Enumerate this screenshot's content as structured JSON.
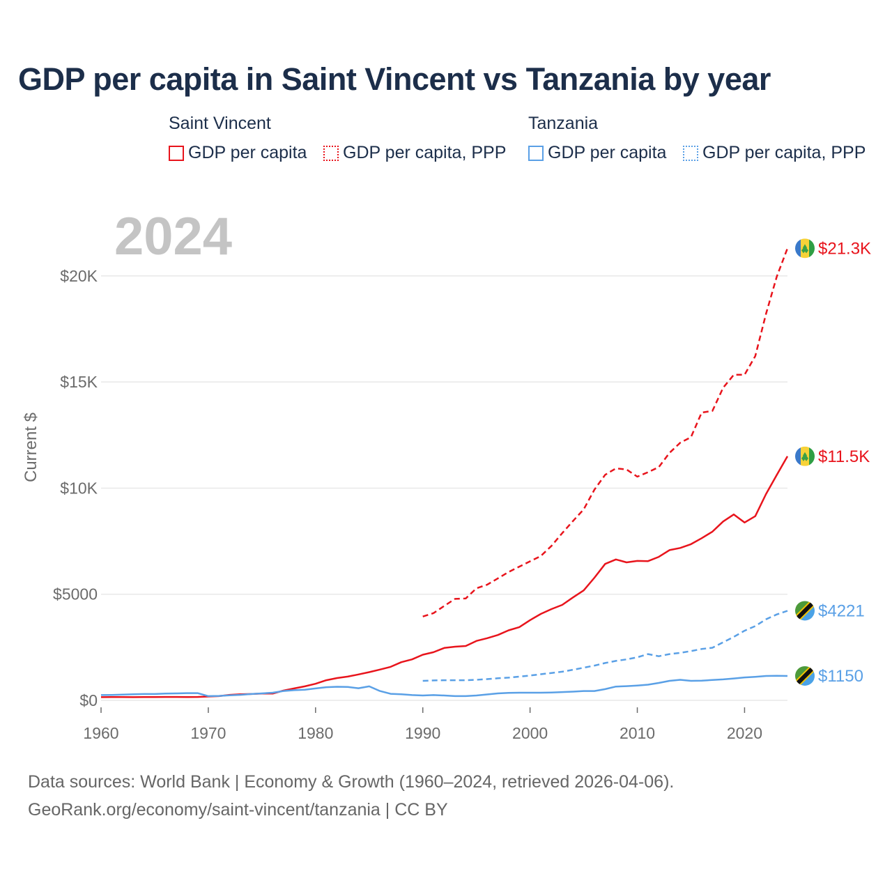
{
  "title": "GDP per capita in Saint Vincent vs Tanzania by year",
  "current_year": "2024",
  "colors": {
    "saint_vincent": "#e8141c",
    "tanzania": "#5aa0e6",
    "title": "#1c2e4a",
    "grid": "#e8e8e8"
  },
  "legend": {
    "groups": [
      {
        "name": "Saint Vincent",
        "items": [
          "GDP per capita",
          "GDP per capita, PPP"
        ]
      },
      {
        "name": "Tanzania",
        "items": [
          "GDP per capita",
          "GDP per capita, PPP"
        ]
      }
    ]
  },
  "source": {
    "line1": "Data sources: World Bank | Economy & Growth (1960–2024, retrieved 2026-04-06).",
    "line2": "GeoRank.org/economy/saint-vincent/tanzania | CC BY"
  },
  "chart_data": {
    "type": "line",
    "title": "GDP per capita in Saint Vincent vs Tanzania by year",
    "xlabel": "",
    "ylabel": "Current $",
    "xlim": [
      1960,
      2024
    ],
    "ylim": [
      0,
      22000
    ],
    "x_ticks": [
      1960,
      1970,
      1980,
      1990,
      2000,
      2010,
      2020
    ],
    "y_ticks": [
      0,
      5000,
      10000,
      15000,
      20000
    ],
    "y_tick_labels": [
      "$0",
      "$5000",
      "$10K",
      "$15K",
      "$20K"
    ],
    "grid": true,
    "series": [
      {
        "name": "Saint Vincent GDP per capita",
        "country": "saint_vincent",
        "style": "solid",
        "end_label": "$11.5K",
        "x": [
          1960,
          1961,
          1962,
          1963,
          1964,
          1965,
          1966,
          1967,
          1968,
          1969,
          1970,
          1971,
          1972,
          1973,
          1974,
          1975,
          1976,
          1977,
          1978,
          1979,
          1980,
          1981,
          1982,
          1983,
          1984,
          1985,
          1986,
          1987,
          1988,
          1989,
          1990,
          1991,
          1992,
          1993,
          1994,
          1995,
          1996,
          1997,
          1998,
          1999,
          2000,
          2001,
          2002,
          2003,
          2004,
          2005,
          2006,
          2007,
          2008,
          2009,
          2010,
          2011,
          2012,
          2013,
          2014,
          2015,
          2016,
          2017,
          2018,
          2019,
          2020,
          2021,
          2022,
          2023,
          2024
        ],
        "values": [
          150,
          155,
          155,
          150,
          155,
          158,
          160,
          160,
          155,
          160,
          180,
          200,
          260,
          290,
          300,
          320,
          320,
          460,
          560,
          660,
          780,
          950,
          1050,
          1120,
          1220,
          1330,
          1450,
          1580,
          1800,
          1930,
          2150,
          2270,
          2470,
          2530,
          2560,
          2800,
          2930,
          3080,
          3300,
          3450,
          3780,
          4070,
          4300,
          4500,
          4850,
          5180,
          5780,
          6430,
          6640,
          6500,
          6570,
          6560,
          6760,
          7080,
          7180,
          7360,
          7640,
          7950,
          8430,
          8760,
          8380,
          8680,
          9720,
          10620,
          11500
        ]
      },
      {
        "name": "Saint Vincent GDP per capita, PPP",
        "country": "saint_vincent",
        "style": "dashed",
        "end_label": "$21.3K",
        "x": [
          1990,
          1991,
          1992,
          1993,
          1994,
          1995,
          1996,
          1997,
          1998,
          1999,
          2000,
          2001,
          2002,
          2003,
          2004,
          2005,
          2006,
          2007,
          2008,
          2009,
          2010,
          2011,
          2012,
          2013,
          2014,
          2015,
          2016,
          2017,
          2018,
          2019,
          2020,
          2021,
          2022,
          2023,
          2024
        ],
        "values": [
          3950,
          4110,
          4450,
          4780,
          4800,
          5280,
          5450,
          5750,
          6050,
          6300,
          6550,
          6800,
          7280,
          7880,
          8450,
          9000,
          9930,
          10630,
          10930,
          10880,
          10540,
          10750,
          10990,
          11660,
          12140,
          12400,
          13560,
          13640,
          14730,
          15340,
          15340,
          16220,
          18210,
          19960,
          21300
        ]
      },
      {
        "name": "Tanzania GDP per capita",
        "country": "tanzania",
        "style": "solid",
        "end_label": "$1150",
        "x": [
          1960,
          1961,
          1962,
          1963,
          1964,
          1965,
          1966,
          1967,
          1968,
          1969,
          1970,
          1971,
          1972,
          1973,
          1974,
          1975,
          1976,
          1977,
          1978,
          1979,
          1980,
          1981,
          1982,
          1983,
          1984,
          1985,
          1986,
          1987,
          1988,
          1989,
          1990,
          1991,
          1992,
          1993,
          1994,
          1995,
          1996,
          1997,
          1998,
          1999,
          2000,
          2001,
          2002,
          2003,
          2004,
          2005,
          2006,
          2007,
          2008,
          2009,
          2010,
          2011,
          2012,
          2013,
          2014,
          2015,
          2016,
          2017,
          2018,
          2019,
          2020,
          2021,
          2022,
          2023,
          2024
        ],
        "values": [
          250,
          255,
          270,
          290,
          300,
          300,
          320,
          330,
          340,
          340,
          200,
          210,
          240,
          260,
          300,
          330,
          360,
          440,
          480,
          500,
          560,
          620,
          640,
          630,
          570,
          660,
          440,
          310,
          290,
          250,
          230,
          250,
          230,
          200,
          200,
          230,
          280,
          330,
          350,
          360,
          360,
          360,
          370,
          390,
          410,
          440,
          440,
          530,
          650,
          670,
          700,
          740,
          820,
          920,
          970,
          920,
          930,
          960,
          990,
          1030,
          1080,
          1110,
          1150,
          1160,
          1150
        ]
      },
      {
        "name": "Tanzania GDP per capita, PPP",
        "country": "tanzania",
        "style": "dashed",
        "end_label": "$4221",
        "x": [
          1990,
          1991,
          1992,
          1993,
          1994,
          1995,
          1996,
          1997,
          1998,
          1999,
          2000,
          2001,
          2002,
          2003,
          2004,
          2005,
          2006,
          2007,
          2008,
          2009,
          2010,
          2011,
          2012,
          2013,
          2014,
          2015,
          2016,
          2017,
          2018,
          2019,
          2020,
          2021,
          2022,
          2023,
          2024
        ],
        "values": [
          920,
          940,
          950,
          950,
          950,
          970,
          1000,
          1040,
          1070,
          1120,
          1170,
          1230,
          1290,
          1350,
          1440,
          1540,
          1640,
          1760,
          1860,
          1930,
          2030,
          2180,
          2080,
          2180,
          2240,
          2320,
          2420,
          2480,
          2740,
          2990,
          3280,
          3500,
          3820,
          4050,
          4221
        ]
      }
    ]
  }
}
